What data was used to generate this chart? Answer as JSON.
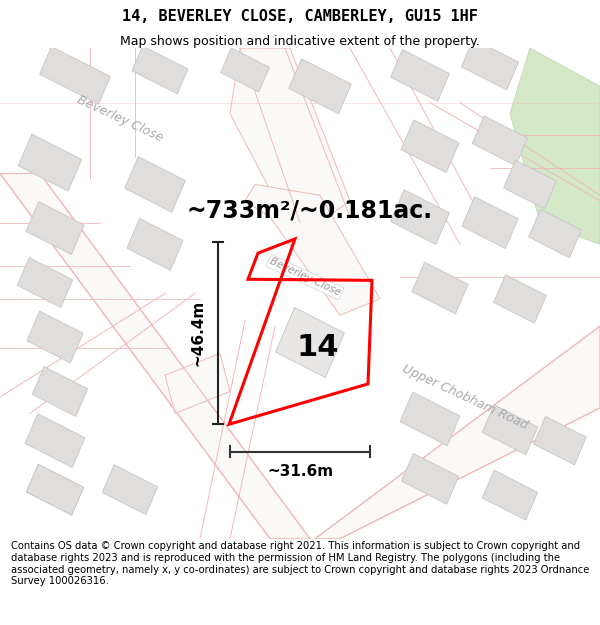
{
  "title": "14, BEVERLEY CLOSE, CAMBERLEY, GU15 1HF",
  "subtitle": "Map shows position and indicative extent of the property.",
  "footer": "Contains OS data © Crown copyright and database right 2021. This information is subject to Crown copyright and database rights 2023 and is reproduced with the permission of HM Land Registry. The polygons (including the associated geometry, namely x, y co-ordinates) are subject to Crown copyright and database rights 2023 Ordnance Survey 100026316.",
  "area_label": "~733m²/~0.181ac.",
  "width_label": "~31.6m",
  "height_label": "~46.4m",
  "plot_number": "14",
  "map_bg": "#f5f4f2",
  "road_fill": "#f5f4f2",
  "road_outline": "#f0b8b8",
  "building_fill": "#e0dedd",
  "building_edge": "#c8c4c0",
  "green_fill": "#d4e8c8",
  "green_edge": "#c0d8b0",
  "plot_edge": "#ff0000",
  "plot_fill_rgba": [
    1.0,
    1.0,
    1.0,
    0.0
  ],
  "dim_color": "#333333",
  "text_color": "#000000",
  "street_color": "#b8b0b0",
  "title_fontsize": 11,
  "subtitle_fontsize": 9,
  "footer_fontsize": 7.2,
  "area_fontsize": 17,
  "dim_fontsize": 11,
  "plot_num_fontsize": 22,
  "street_fontsize": 9
}
